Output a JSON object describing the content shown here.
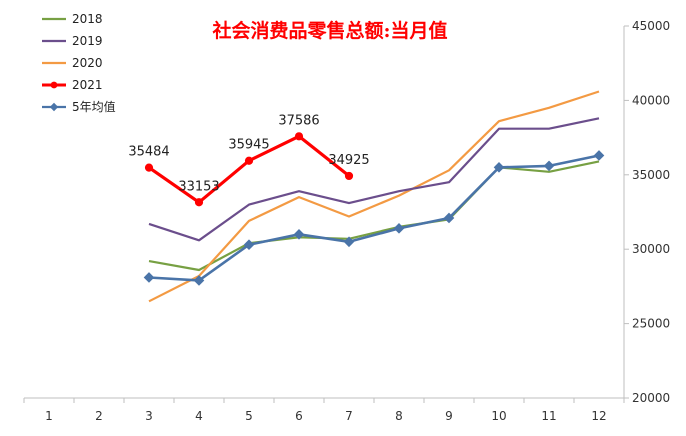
{
  "chart_data": {
    "type": "line",
    "title": "社会消费品零售总额:当月值",
    "x": [
      "1",
      "2",
      "3",
      "4",
      "5",
      "6",
      "7",
      "8",
      "9",
      "10",
      "11",
      "12"
    ],
    "ylim": [
      20000,
      45000
    ],
    "yticks": [
      20000,
      25000,
      30000,
      35000,
      40000,
      45000
    ],
    "y_axis_side": "right",
    "grid": false,
    "legend_position": "top-left",
    "series": [
      {
        "name": "2018",
        "color": "#77a043",
        "marker": "none",
        "values": [
          null,
          null,
          29200,
          28600,
          30400,
          30800,
          30700,
          31500,
          32000,
          35500,
          35200,
          35900
        ]
      },
      {
        "name": "2019",
        "color": "#6b4e8c",
        "marker": "none",
        "values": [
          null,
          null,
          31700,
          30600,
          33000,
          33900,
          33100,
          33900,
          34500,
          38100,
          38100,
          38800
        ]
      },
      {
        "name": "2020",
        "color": "#f39a43",
        "marker": "none",
        "values": [
          null,
          null,
          26500,
          28200,
          31900,
          33500,
          32200,
          33600,
          35300,
          38600,
          39500,
          40600
        ]
      },
      {
        "name": "2021",
        "color": "#ff0000",
        "marker": "circle",
        "values": [
          null,
          null,
          35484,
          33153,
          35945,
          37586,
          34925,
          null,
          null,
          null,
          null,
          null
        ],
        "labels": [
          "",
          "",
          "35484",
          "33153",
          "35945",
          "37586",
          "34925",
          "",
          "",
          "",
          "",
          ""
        ]
      },
      {
        "name": "5年均值",
        "color": "#4a74a8",
        "marker": "diamond",
        "values": [
          null,
          null,
          28100,
          27900,
          30300,
          31000,
          30500,
          31400,
          32100,
          35500,
          35600,
          36300
        ]
      }
    ]
  }
}
